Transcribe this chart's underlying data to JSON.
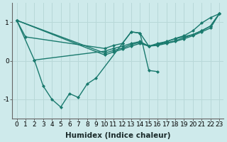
{
  "background_color": "#ceeaeb",
  "grid_color": "#b8d8d8",
  "line_color": "#1a7a6e",
  "line_width": 1.0,
  "marker": "D",
  "marker_size": 2.0,
  "xlabel": "Humidex (Indice chaleur)",
  "xlabel_fontsize": 7.5,
  "tick_fontsize": 6.5,
  "xlim": [
    -0.5,
    23.5
  ],
  "ylim": [
    -1.5,
    1.5
  ],
  "yticks": [
    -1,
    0,
    1
  ],
  "xticks": [
    0,
    1,
    2,
    3,
    4,
    5,
    6,
    7,
    8,
    9,
    10,
    11,
    12,
    13,
    14,
    15,
    16,
    17,
    18,
    19,
    20,
    21,
    22,
    23
  ],
  "series1_x": [
    0,
    1,
    10,
    11,
    12,
    13,
    14,
    15,
    16,
    17,
    18,
    19,
    20,
    21,
    22,
    23
  ],
  "series1_y": [
    1.05,
    0.62,
    0.32,
    0.4,
    0.45,
    0.75,
    0.72,
    0.38,
    0.42,
    0.5,
    0.58,
    0.65,
    0.78,
    0.98,
    1.12,
    1.22
  ],
  "series2_x": [
    0,
    2,
    10,
    11,
    12,
    13,
    14,
    15,
    16,
    17,
    18,
    19,
    20,
    21,
    22,
    23
  ],
  "series2_y": [
    1.05,
    0.02,
    0.25,
    0.32,
    0.38,
    0.45,
    0.5,
    0.38,
    0.45,
    0.5,
    0.57,
    0.63,
    0.68,
    0.78,
    0.9,
    1.22
  ],
  "series3_x": [
    0,
    10,
    11,
    12,
    13,
    14,
    15,
    16,
    17,
    18,
    19,
    20,
    21,
    22,
    23
  ],
  "series3_y": [
    1.05,
    0.2,
    0.27,
    0.33,
    0.42,
    0.48,
    0.38,
    0.42,
    0.47,
    0.52,
    0.6,
    0.68,
    0.78,
    0.9,
    1.22
  ],
  "series4_x": [
    0,
    10,
    11,
    12,
    13,
    14,
    15,
    16,
    17,
    18,
    19,
    20,
    21,
    22,
    23
  ],
  "series4_y": [
    1.05,
    0.15,
    0.23,
    0.3,
    0.38,
    0.45,
    0.38,
    0.4,
    0.45,
    0.5,
    0.57,
    0.65,
    0.75,
    0.85,
    1.22
  ],
  "series5_x": [
    2,
    3,
    4,
    5,
    6,
    7,
    8,
    9,
    12,
    13,
    14,
    15,
    16
  ],
  "series5_y": [
    0.02,
    -0.65,
    -1.0,
    -1.2,
    -0.85,
    -0.95,
    -0.6,
    -0.45,
    0.45,
    0.75,
    0.72,
    -0.25,
    -0.28
  ]
}
